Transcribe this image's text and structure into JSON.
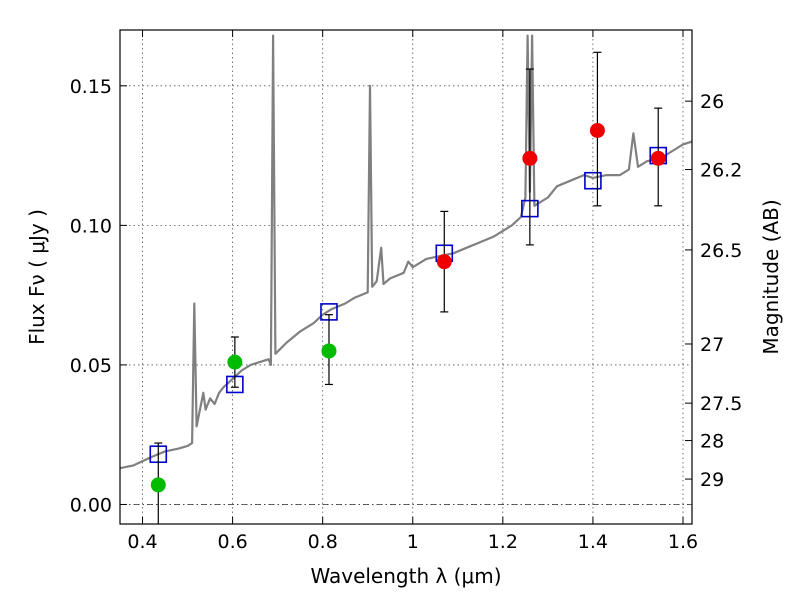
{
  "chart_data": {
    "type": "scatter",
    "xlabel": "Wavelength  λ (μm)",
    "ylabel": "Flux  Fν  ( μJy )",
    "y2label": "Magnitude (AB)",
    "xlim": [
      0.35,
      1.62
    ],
    "ylim": [
      -0.007,
      0.17
    ],
    "x_ticks": [
      {
        "value": 0.4,
        "label": "0.4"
      },
      {
        "value": 0.6,
        "label": "0.6"
      },
      {
        "value": 0.8,
        "label": "0.8"
      },
      {
        "value": 1.0,
        "label": "1"
      },
      {
        "value": 1.2,
        "label": "1.2"
      },
      {
        "value": 1.4,
        "label": "1.4"
      },
      {
        "value": 1.6,
        "label": "1.6"
      }
    ],
    "y_ticks": [
      {
        "value": 0.0,
        "label": "0.00"
      },
      {
        "value": 0.05,
        "label": "0.05"
      },
      {
        "value": 0.1,
        "label": "0.10"
      },
      {
        "value": 0.15,
        "label": "0.15"
      }
    ],
    "y2_ticks": [
      {
        "flux": 0.1445,
        "label": "26"
      },
      {
        "flux": 0.12,
        "label": "26.2"
      },
      {
        "flux": 0.0912,
        "label": "26.5"
      },
      {
        "flux": 0.0575,
        "label": "27"
      },
      {
        "flux": 0.0363,
        "label": "27.5"
      },
      {
        "flux": 0.0229,
        "label": "28"
      },
      {
        "flux": 0.0091,
        "label": "29"
      }
    ],
    "grid": true,
    "zero_line": true,
    "spectrum": {
      "color": "#808080",
      "points": [
        [
          0.35,
          0.013
        ],
        [
          0.38,
          0.014
        ],
        [
          0.42,
          0.017
        ],
        [
          0.45,
          0.019
        ],
        [
          0.48,
          0.02
        ],
        [
          0.5,
          0.021
        ],
        [
          0.51,
          0.022
        ],
        [
          0.515,
          0.072
        ],
        [
          0.52,
          0.028
        ],
        [
          0.53,
          0.036
        ],
        [
          0.535,
          0.04
        ],
        [
          0.54,
          0.034
        ],
        [
          0.55,
          0.038
        ],
        [
          0.56,
          0.036
        ],
        [
          0.57,
          0.04
        ],
        [
          0.58,
          0.042
        ],
        [
          0.6,
          0.045
        ],
        [
          0.62,
          0.048
        ],
        [
          0.64,
          0.05
        ],
        [
          0.66,
          0.051
        ],
        [
          0.68,
          0.052
        ],
        [
          0.685,
          0.05
        ],
        [
          0.69,
          0.168
        ],
        [
          0.695,
          0.054
        ],
        [
          0.72,
          0.058
        ],
        [
          0.75,
          0.062
        ],
        [
          0.78,
          0.065
        ],
        [
          0.8,
          0.068
        ],
        [
          0.82,
          0.07
        ],
        [
          0.85,
          0.072
        ],
        [
          0.87,
          0.074
        ],
        [
          0.9,
          0.076
        ],
        [
          0.905,
          0.15
        ],
        [
          0.91,
          0.078
        ],
        [
          0.92,
          0.08
        ],
        [
          0.93,
          0.092
        ],
        [
          0.935,
          0.079
        ],
        [
          0.95,
          0.081
        ],
        [
          0.98,
          0.083
        ],
        [
          0.99,
          0.087
        ],
        [
          1.0,
          0.085
        ],
        [
          1.03,
          0.088
        ],
        [
          1.06,
          0.089
        ],
        [
          1.09,
          0.09
        ],
        [
          1.12,
          0.092
        ],
        [
          1.15,
          0.094
        ],
        [
          1.18,
          0.096
        ],
        [
          1.2,
          0.098
        ],
        [
          1.22,
          0.1
        ],
        [
          1.24,
          0.103
        ],
        [
          1.25,
          0.11
        ],
        [
          1.255,
          0.168
        ],
        [
          1.26,
          0.112
        ],
        [
          1.265,
          0.168
        ],
        [
          1.27,
          0.107
        ],
        [
          1.3,
          0.11
        ],
        [
          1.32,
          0.114
        ],
        [
          1.35,
          0.116
        ],
        [
          1.38,
          0.118
        ],
        [
          1.4,
          0.117
        ],
        [
          1.43,
          0.118
        ],
        [
          1.46,
          0.118
        ],
        [
          1.48,
          0.12
        ],
        [
          1.49,
          0.133
        ],
        [
          1.5,
          0.121
        ],
        [
          1.52,
          0.123
        ],
        [
          1.55,
          0.124
        ],
        [
          1.58,
          0.127
        ],
        [
          1.6,
          0.129
        ],
        [
          1.62,
          0.13
        ]
      ]
    },
    "series": [
      {
        "marker": "square",
        "color": "#0000cc",
        "points": [
          {
            "x": 0.435,
            "y": 0.018
          },
          {
            "x": 0.605,
            "y": 0.043
          },
          {
            "x": 0.814,
            "y": 0.069
          },
          {
            "x": 1.07,
            "y": 0.09
          },
          {
            "x": 1.26,
            "y": 0.106
          },
          {
            "x": 1.4,
            "y": 0.116
          },
          {
            "x": 1.545,
            "y": 0.125
          }
        ]
      },
      {
        "marker": "circle",
        "color": "#00bb00",
        "points": [
          {
            "x": 0.435,
            "y": 0.007,
            "err_low": -0.008,
            "err_high": 0.022
          },
          {
            "x": 0.605,
            "y": 0.051,
            "err_low": 0.042,
            "err_high": 0.06
          },
          {
            "x": 0.814,
            "y": 0.055,
            "err_low": 0.043,
            "err_high": 0.068
          }
        ]
      },
      {
        "marker": "circle",
        "color": "#ee0000",
        "points": [
          {
            "x": 1.07,
            "y": 0.087,
            "err_low": 0.069,
            "err_high": 0.105
          },
          {
            "x": 1.26,
            "y": 0.124,
            "err_low": 0.093,
            "err_high": 0.156
          },
          {
            "x": 1.41,
            "y": 0.134,
            "err_low": 0.107,
            "err_high": 0.162
          },
          {
            "x": 1.545,
            "y": 0.124,
            "err_low": 0.107,
            "err_high": 0.142
          }
        ]
      }
    ]
  }
}
